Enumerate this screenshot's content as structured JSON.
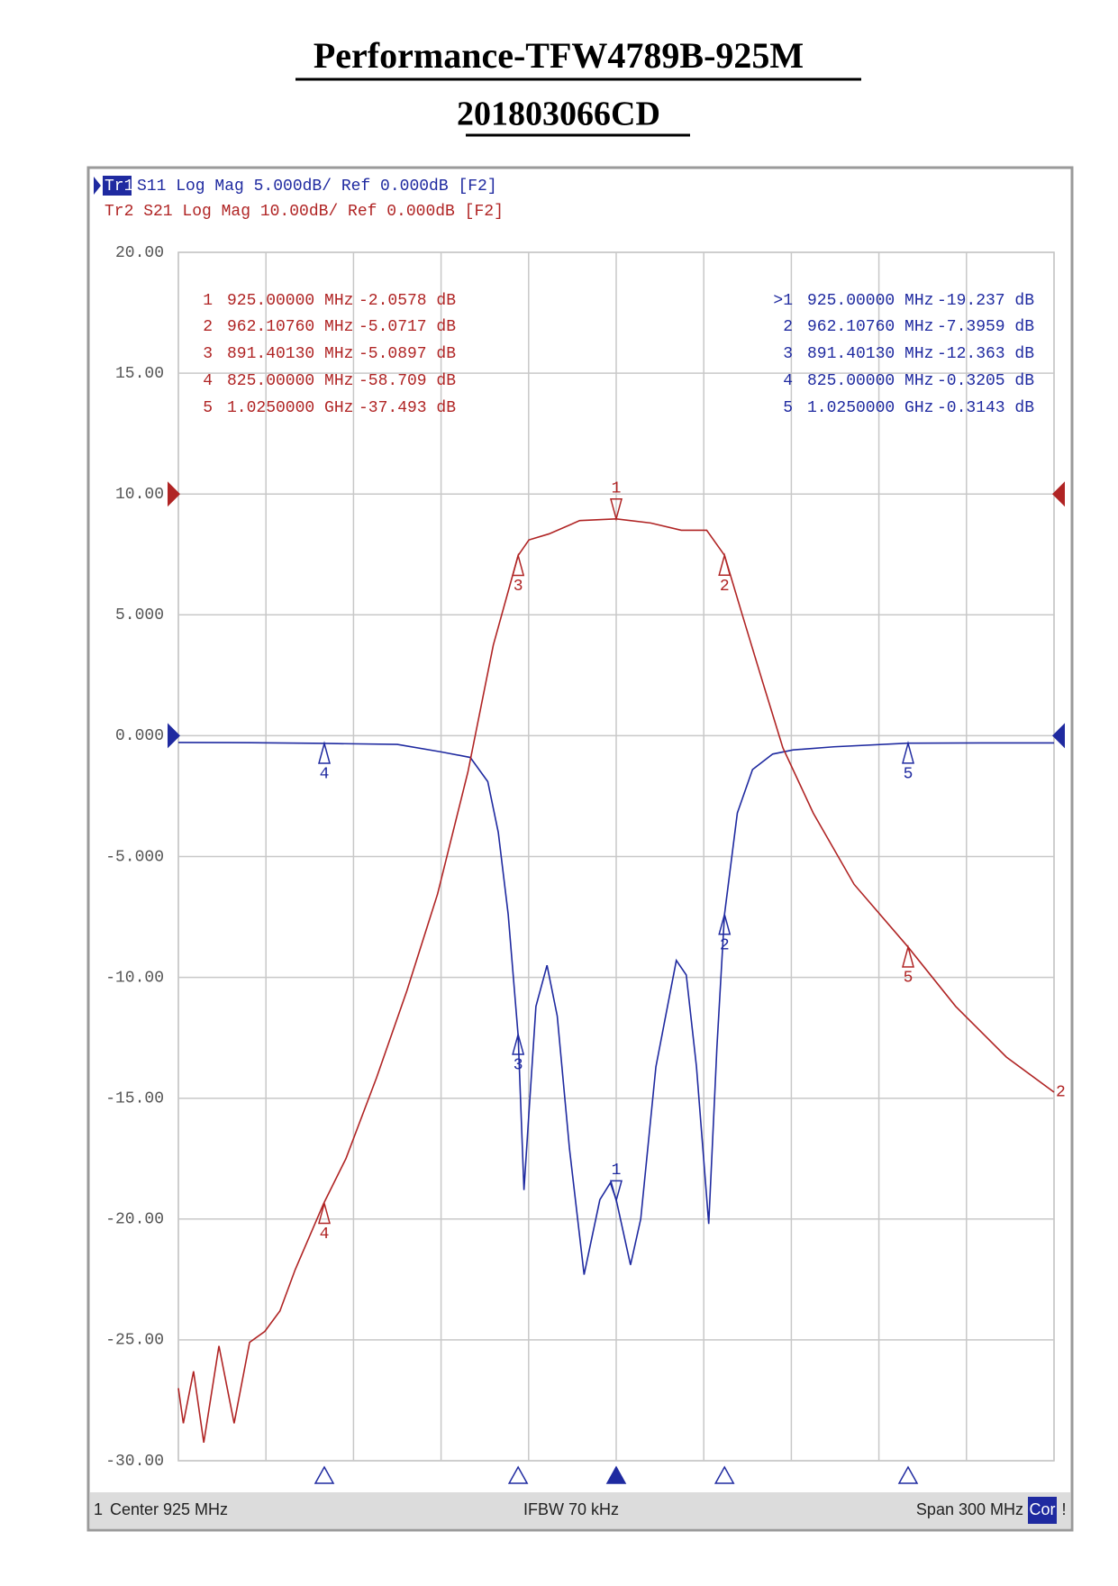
{
  "chart_data": {
    "type": "line",
    "title": "Performance-TFW4789B-925M",
    "subtitle": "201803066CD",
    "header": {
      "tr1": "Tr1",
      "tr1_text": "S11 Log Mag 5.000dB/ Ref 0.000dB [F2]",
      "tr2_text": "Tr2 S21 Log Mag 10.00dB/ Ref 0.000dB [F2]"
    },
    "footer": {
      "channel": "1",
      "center": "Center 925 MHz",
      "ifbw": "IFBW 70 kHz",
      "span": "Span 300 MHz",
      "cor": "Cor",
      "warn": "!"
    },
    "xlim": [
      775,
      1075
    ],
    "ylim": [
      -30,
      20
    ],
    "yticks": [
      {
        "value": 20,
        "label": "20.00"
      },
      {
        "value": 15,
        "label": "15.00"
      },
      {
        "value": 10,
        "label": "10.00"
      },
      {
        "value": 5,
        "label": "5.000"
      },
      {
        "value": 0,
        "label": "0.000"
      },
      {
        "value": -5,
        "label": "-5.000"
      },
      {
        "value": -10,
        "label": "-10.00"
      },
      {
        "value": -15,
        "label": "-15.00"
      },
      {
        "value": -20,
        "label": "-20.00"
      },
      {
        "value": -25,
        "label": "-25.00"
      },
      {
        "value": -30,
        "label": "-30.00"
      }
    ],
    "y2lim": [
      -80,
      20
    ],
    "grid": true,
    "series": [
      {
        "name": "S11",
        "color": "#1f2aa0",
        "ref": 0,
        "x": [
          775,
          800,
          825,
          850,
          865,
          875,
          881,
          884.6,
          888,
          891.4,
          893.4,
          895,
          897.5,
          901.3,
          904.8,
          909,
          914,
          919.4,
          923,
          925,
          929.9,
          933.4,
          938.6,
          945.6,
          949,
          952.5,
          956.7,
          959.5,
          962.1,
          966.5,
          971.7,
          978.6,
          985.6,
          999.5,
          1025,
          1050,
          1075
        ],
        "values": [
          -0.28,
          -0.29,
          -0.32,
          -0.36,
          -0.67,
          -0.9,
          -1.9,
          -4,
          -7.4,
          -12.4,
          -18.8,
          -15.8,
          -11.2,
          -9.5,
          -11.6,
          -17.1,
          -22.3,
          -19.2,
          -18.5,
          -19.2,
          -21.9,
          -20,
          -13.7,
          -9.3,
          -9.9,
          -13.7,
          -20.2,
          -12.9,
          -7.4,
          -3.2,
          -1.4,
          -0.76,
          -0.59,
          -0.46,
          -0.31,
          -0.3,
          -0.3
        ],
        "markers": [
          {
            "id": ">1",
            "x": 925,
            "x_label": "925.00000 MHz",
            "value": -19.237,
            "value_label": "-19.237 dB"
          },
          {
            "id": "2",
            "x": 962.1076,
            "x_label": "962.10760 MHz",
            "value": -7.3959,
            "value_label": "-7.3959 dB"
          },
          {
            "id": "3",
            "x": 891.4013,
            "x_label": "891.40130 MHz",
            "value": -12.363,
            "value_label": "-12.363 dB"
          },
          {
            "id": "4",
            "x": 825,
            "x_label": "825.00000 MHz",
            "value": -0.3205,
            "value_label": "-0.3205 dB"
          },
          {
            "id": "5",
            "x": 1025,
            "x_label": "1.0250000 GHz",
            "value": -0.3143,
            "value_label": "-0.3143 dB"
          }
        ]
      },
      {
        "name": "S21",
        "color": "#b02424",
        "axis": "y2",
        "ref": 0,
        "end_label": "2",
        "x": [
          775,
          776.7,
          780.2,
          783.7,
          788.9,
          794.1,
          799.4,
          804.6,
          809.8,
          815,
          824.8,
          832.4,
          842.9,
          853.3,
          863.8,
          874.2,
          882.9,
          891.4,
          895.1,
          902,
          912.5,
          925,
          936.8,
          947.3,
          956,
          962.1,
          968.2,
          975.1,
          982.1,
          992.5,
          1006.5,
          1025,
          1041.3,
          1058.7,
          1075
        ],
        "values": [
          -74,
          -76.9,
          -72.6,
          -78.5,
          -70.5,
          -76.9,
          -70.2,
          -69.3,
          -67.6,
          -64.2,
          -58.7,
          -55,
          -48.3,
          -41.1,
          -33.1,
          -23,
          -12.5,
          -5.09,
          -3.8,
          -3.3,
          -2.2,
          -2.06,
          -2.4,
          -3,
          -3,
          -5.07,
          -10,
          -15.5,
          -21,
          -26.4,
          -32.3,
          -37.49,
          -42.4,
          -46.6,
          -49.5
        ],
        "markers": [
          {
            "id": "1",
            "x": 925,
            "x_label": "925.00000 MHz",
            "value": -2.0578,
            "value_label": "-2.0578 dB"
          },
          {
            "id": "2",
            "x": 962.1076,
            "x_label": "962.10760 MHz",
            "value": -5.0717,
            "value_label": "-5.0717 dB"
          },
          {
            "id": "3",
            "x": 891.4013,
            "x_label": "891.40130 MHz",
            "value": -5.0897,
            "value_label": "-5.0897 dB"
          },
          {
            "id": "4",
            "x": 825,
            "x_label": "825.00000 MHz",
            "value": -58.709,
            "value_label": "-58.709 dB"
          },
          {
            "id": "5",
            "x": 1025,
            "x_label": "1.0250000 GHz",
            "value": -37.493,
            "value_label": "-37.493 dB"
          }
        ]
      }
    ]
  }
}
